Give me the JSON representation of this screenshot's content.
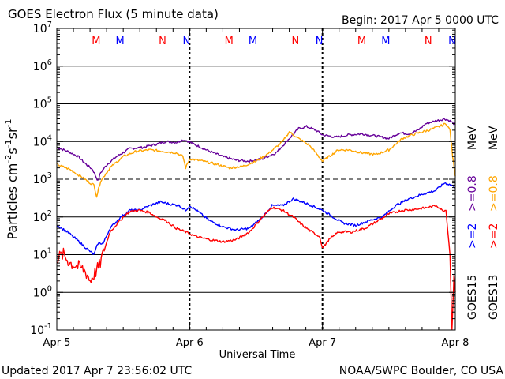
{
  "header": {
    "title": "GOES Electron Flux (5 minute data)",
    "begin": "Begin: 2017 Apr 5 0000 UTC"
  },
  "footer": {
    "updated": "Updated 2017 Apr  7 23:56:02 UTC",
    "credit": "NOAA/SWPC Boulder, CO USA"
  },
  "colors": {
    "red": "#ff0000",
    "blue": "#0000ff",
    "orange": "#ffa500",
    "purple": "#660099"
  },
  "chart_data": {
    "type": "line",
    "title": "GOES Electron Flux (5 minute data)",
    "xlabel": "Universal Time",
    "ylabel": "Particles cm^-2 s^-1 sr^-1",
    "yscale": "log",
    "xlim_days": [
      0,
      3
    ],
    "ylim": [
      0.1,
      10000000
    ],
    "x_ticks": [
      {
        "day": 0,
        "label": "Apr 5"
      },
      {
        "day": 1,
        "label": "Apr 6"
      },
      {
        "day": 2,
        "label": "Apr 7"
      },
      {
        "day": 3,
        "label": "Apr 8"
      }
    ],
    "y_ticks": [
      {
        "exp": -1,
        "base": "10",
        "sup": "-1"
      },
      {
        "exp": 0,
        "base": "10",
        "sup": "0"
      },
      {
        "exp": 1,
        "base": "10",
        "sup": "1"
      },
      {
        "exp": 2,
        "base": "10",
        "sup": "2"
      },
      {
        "exp": 3,
        "base": "10",
        "sup": "3"
      },
      {
        "exp": 4,
        "base": "10",
        "sup": "4"
      },
      {
        "exp": 5,
        "base": "10",
        "sup": "5"
      },
      {
        "exp": 6,
        "base": "10",
        "sup": "6"
      },
      {
        "exp": 7,
        "base": "10",
        "sup": "7"
      }
    ],
    "threshold_line": {
      "value": 1000,
      "style": "dashed"
    },
    "markers": [
      {
        "day": 0.32,
        "label": "M",
        "color": "#ff0000"
      },
      {
        "day": 0.5,
        "label": "M",
        "color": "#0000ff"
      },
      {
        "day": 0.82,
        "label": "N",
        "color": "#ff0000"
      },
      {
        "day": 1.0,
        "label": "N",
        "color": "#0000ff"
      },
      {
        "day": 1.32,
        "label": "M",
        "color": "#ff0000"
      },
      {
        "day": 1.5,
        "label": "M",
        "color": "#0000ff"
      },
      {
        "day": 1.82,
        "label": "N",
        "color": "#ff0000"
      },
      {
        "day": 2.0,
        "label": "N",
        "color": "#0000ff"
      },
      {
        "day": 2.32,
        "label": "M",
        "color": "#ff0000"
      },
      {
        "day": 2.5,
        "label": "M",
        "color": "#0000ff"
      },
      {
        "day": 2.82,
        "label": "N",
        "color": "#ff0000"
      },
      {
        "day": 3.0,
        "label": "N",
        "color": "#0000ff"
      }
    ],
    "right_labels": {
      "goes15": "GOES15",
      "goes13": "GOES13",
      "ge2_blue": ">=2",
      "ge08_purple": ">=0.8",
      "ge2_red": ">=2",
      "ge08_orange": ">=0.8",
      "mev_top": "MeV",
      "mev_bottom": "MeV"
    },
    "series": [
      {
        "key": "goes15_ge08",
        "color": "#660099",
        "points": [
          [
            0.0,
            7000
          ],
          [
            0.08,
            5500
          ],
          [
            0.16,
            4000
          ],
          [
            0.22,
            2500
          ],
          [
            0.27,
            1800
          ],
          [
            0.31,
            900
          ],
          [
            0.33,
            1500
          ],
          [
            0.38,
            2500
          ],
          [
            0.45,
            4000
          ],
          [
            0.55,
            6500
          ],
          [
            0.65,
            7000
          ],
          [
            0.75,
            8500
          ],
          [
            0.82,
            10000
          ],
          [
            0.9,
            9500
          ],
          [
            0.95,
            11000
          ],
          [
            0.98,
            10500
          ],
          [
            1.05,
            8000
          ],
          [
            1.15,
            5500
          ],
          [
            1.25,
            4000
          ],
          [
            1.35,
            3200
          ],
          [
            1.45,
            3000
          ],
          [
            1.55,
            3500
          ],
          [
            1.65,
            5000
          ],
          [
            1.75,
            12000
          ],
          [
            1.82,
            22000
          ],
          [
            1.88,
            25000
          ],
          [
            1.95,
            20000
          ],
          [
            2.0,
            15000
          ],
          [
            2.1,
            13000
          ],
          [
            2.2,
            15000
          ],
          [
            2.3,
            16000
          ],
          [
            2.4,
            14000
          ],
          [
            2.5,
            12000
          ],
          [
            2.58,
            17000
          ],
          [
            2.65,
            16000
          ],
          [
            2.72,
            20000
          ],
          [
            2.78,
            30000
          ],
          [
            2.85,
            35000
          ],
          [
            2.92,
            40000
          ],
          [
            2.96,
            35000
          ],
          [
            3.0,
            28000
          ]
        ]
      },
      {
        "key": "goes13_ge08",
        "color": "#ffa500",
        "points": [
          [
            0.0,
            2500
          ],
          [
            0.1,
            1800
          ],
          [
            0.18,
            1200
          ],
          [
            0.25,
            800
          ],
          [
            0.28,
            700
          ],
          [
            0.3,
            350
          ],
          [
            0.33,
            900
          ],
          [
            0.4,
            2000
          ],
          [
            0.5,
            4000
          ],
          [
            0.6,
            5500
          ],
          [
            0.7,
            6000
          ],
          [
            0.8,
            5500
          ],
          [
            0.9,
            5000
          ],
          [
            0.95,
            4000
          ],
          [
            0.97,
            2000
          ],
          [
            1.0,
            3500
          ],
          [
            1.1,
            3000
          ],
          [
            1.2,
            2500
          ],
          [
            1.3,
            2000
          ],
          [
            1.4,
            2200
          ],
          [
            1.5,
            3000
          ],
          [
            1.6,
            5000
          ],
          [
            1.7,
            10000
          ],
          [
            1.75,
            18000
          ],
          [
            1.82,
            12000
          ],
          [
            1.9,
            8000
          ],
          [
            1.95,
            5000
          ],
          [
            2.0,
            3000
          ],
          [
            2.05,
            4000
          ],
          [
            2.12,
            6000
          ],
          [
            2.2,
            6000
          ],
          [
            2.3,
            5000
          ],
          [
            2.4,
            4500
          ],
          [
            2.5,
            6000
          ],
          [
            2.6,
            12000
          ],
          [
            2.7,
            16000
          ],
          [
            2.8,
            20000
          ],
          [
            2.88,
            25000
          ],
          [
            2.93,
            30000
          ],
          [
            2.96,
            20000
          ],
          [
            2.98,
            4000
          ],
          [
            3.0,
            1200
          ]
        ]
      },
      {
        "key": "goes15_ge2",
        "color": "#0000ff",
        "points": [
          [
            0.0,
            60
          ],
          [
            0.08,
            40
          ],
          [
            0.15,
            25
          ],
          [
            0.22,
            15
          ],
          [
            0.28,
            10
          ],
          [
            0.31,
            20
          ],
          [
            0.35,
            20
          ],
          [
            0.4,
            50
          ],
          [
            0.48,
            100
          ],
          [
            0.55,
            150
          ],
          [
            0.62,
            150
          ],
          [
            0.7,
            200
          ],
          [
            0.78,
            250
          ],
          [
            0.85,
            220
          ],
          [
            0.92,
            200
          ],
          [
            0.97,
            150
          ],
          [
            1.0,
            200
          ],
          [
            1.05,
            150
          ],
          [
            1.15,
            80
          ],
          [
            1.25,
            55
          ],
          [
            1.35,
            45
          ],
          [
            1.45,
            50
          ],
          [
            1.55,
            100
          ],
          [
            1.62,
            200
          ],
          [
            1.7,
            200
          ],
          [
            1.78,
            300
          ],
          [
            1.85,
            250
          ],
          [
            1.92,
            200
          ],
          [
            2.0,
            150
          ],
          [
            2.08,
            100
          ],
          [
            2.15,
            70
          ],
          [
            2.25,
            60
          ],
          [
            2.35,
            80
          ],
          [
            2.45,
            100
          ],
          [
            2.55,
            200
          ],
          [
            2.65,
            300
          ],
          [
            2.75,
            400
          ],
          [
            2.85,
            500
          ],
          [
            2.92,
            800
          ],
          [
            2.97,
            700
          ],
          [
            3.0,
            600
          ]
        ]
      },
      {
        "key": "goes13_ge2",
        "color": "#ff0000",
        "points": [
          [
            0.0,
            8
          ],
          [
            0.05,
            10
          ],
          [
            0.1,
            6
          ],
          [
            0.15,
            5
          ],
          [
            0.2,
            4
          ],
          [
            0.23,
            3
          ],
          [
            0.25,
            2
          ],
          [
            0.28,
            3
          ],
          [
            0.32,
            5
          ],
          [
            0.4,
            40
          ],
          [
            0.5,
            100
          ],
          [
            0.55,
            140
          ],
          [
            0.62,
            150
          ],
          [
            0.7,
            130
          ],
          [
            0.75,
            100
          ],
          [
            0.82,
            80
          ],
          [
            0.9,
            50
          ],
          [
            0.97,
            40
          ],
          [
            1.05,
            30
          ],
          [
            1.15,
            25
          ],
          [
            1.25,
            22
          ],
          [
            1.35,
            25
          ],
          [
            1.45,
            40
          ],
          [
            1.55,
            100
          ],
          [
            1.62,
            180
          ],
          [
            1.7,
            150
          ],
          [
            1.78,
            100
          ],
          [
            1.85,
            60
          ],
          [
            1.92,
            40
          ],
          [
            1.98,
            30
          ],
          [
            2.0,
            15
          ],
          [
            2.05,
            25
          ],
          [
            2.12,
            40
          ],
          [
            2.22,
            40
          ],
          [
            2.32,
            50
          ],
          [
            2.42,
            80
          ],
          [
            2.5,
            120
          ],
          [
            2.6,
            150
          ],
          [
            2.7,
            160
          ],
          [
            2.8,
            180
          ],
          [
            2.86,
            200
          ],
          [
            2.9,
            150
          ],
          [
            2.93,
            150
          ],
          [
            2.96,
            10
          ],
          [
            2.975,
            0.1
          ],
          [
            2.99,
            3
          ],
          [
            3.0,
            1
          ]
        ]
      }
    ]
  }
}
